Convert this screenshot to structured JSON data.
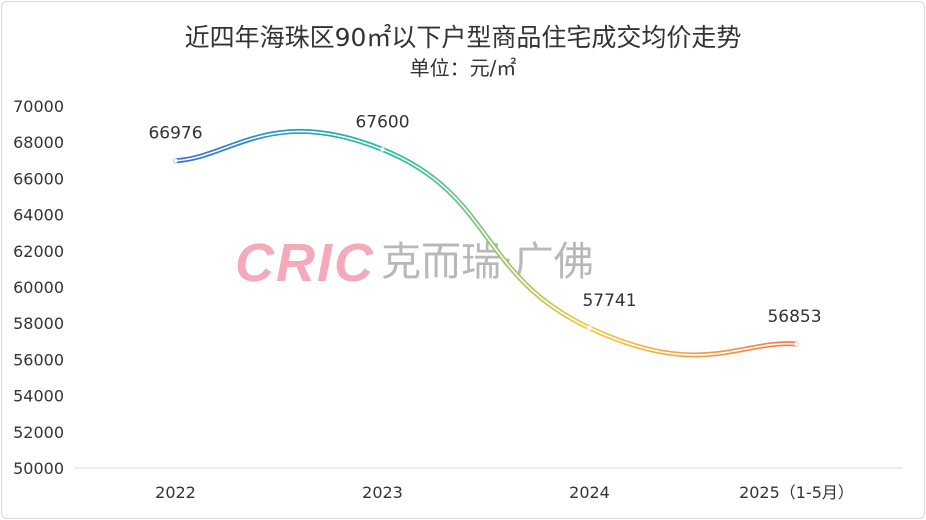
{
  "chart_data": {
    "type": "line",
    "title": "近四年海珠区90㎡以下户型商品住宅成交均价走势",
    "subtitle": "单位：元/㎡",
    "categories": [
      "2022",
      "2023",
      "2024",
      "2025（1-5月）"
    ],
    "values": [
      66976,
      67600,
      57741,
      56853
    ],
    "ylim": [
      50000,
      70000
    ],
    "yticks": [
      50000,
      52000,
      54000,
      56000,
      58000,
      60000,
      62000,
      64000,
      66000,
      68000,
      70000
    ],
    "grid": false,
    "smooth": true,
    "line_gradient": [
      "#3a6fd8",
      "#1fc0a8",
      "#f5c842",
      "#f07a4a"
    ]
  },
  "watermark": {
    "brand": "CRIC",
    "text": "克而瑞·广佛"
  }
}
